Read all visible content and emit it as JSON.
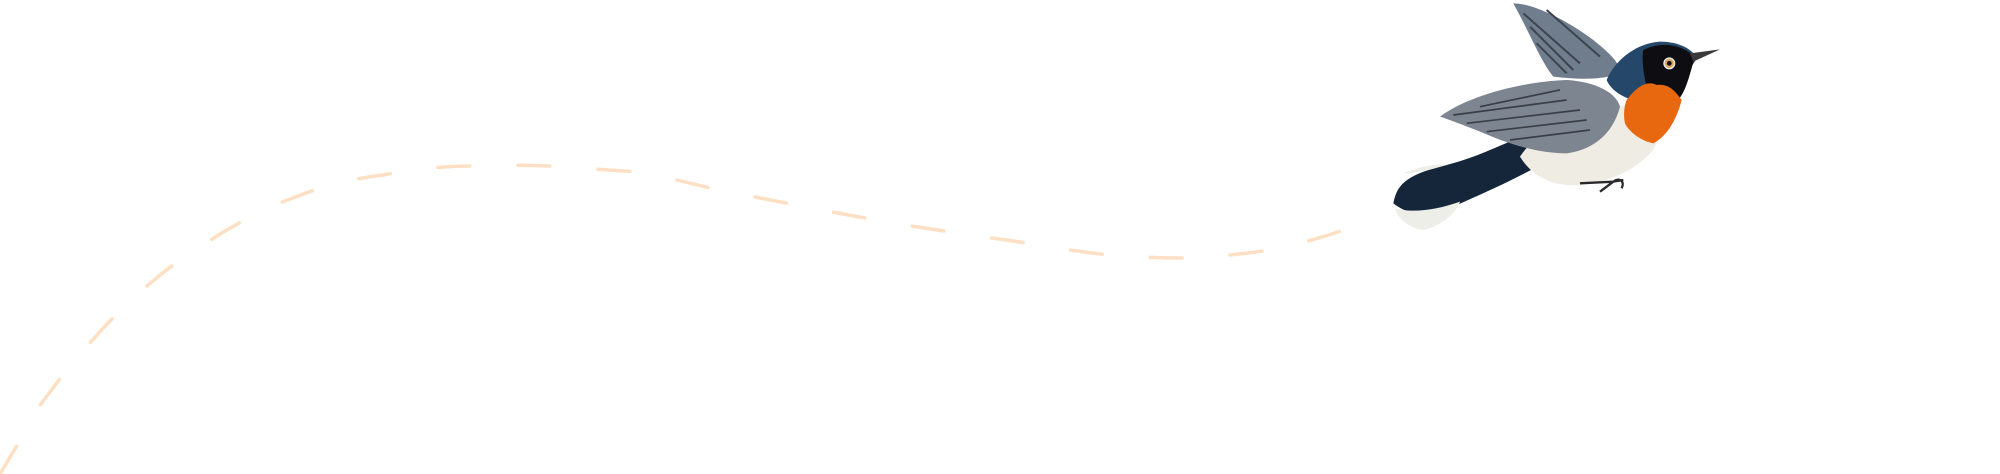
{
  "illustration": {
    "subject": "bird-in-flight",
    "flight_path_style": "dashed",
    "colors": {
      "background": "#ffffff",
      "flight_path": "#fde0c4",
      "bird_back": "#1c2e44",
      "bird_throat": "#e8680f",
      "bird_belly": "#efece4",
      "bird_wing": "#7d8590"
    }
  }
}
